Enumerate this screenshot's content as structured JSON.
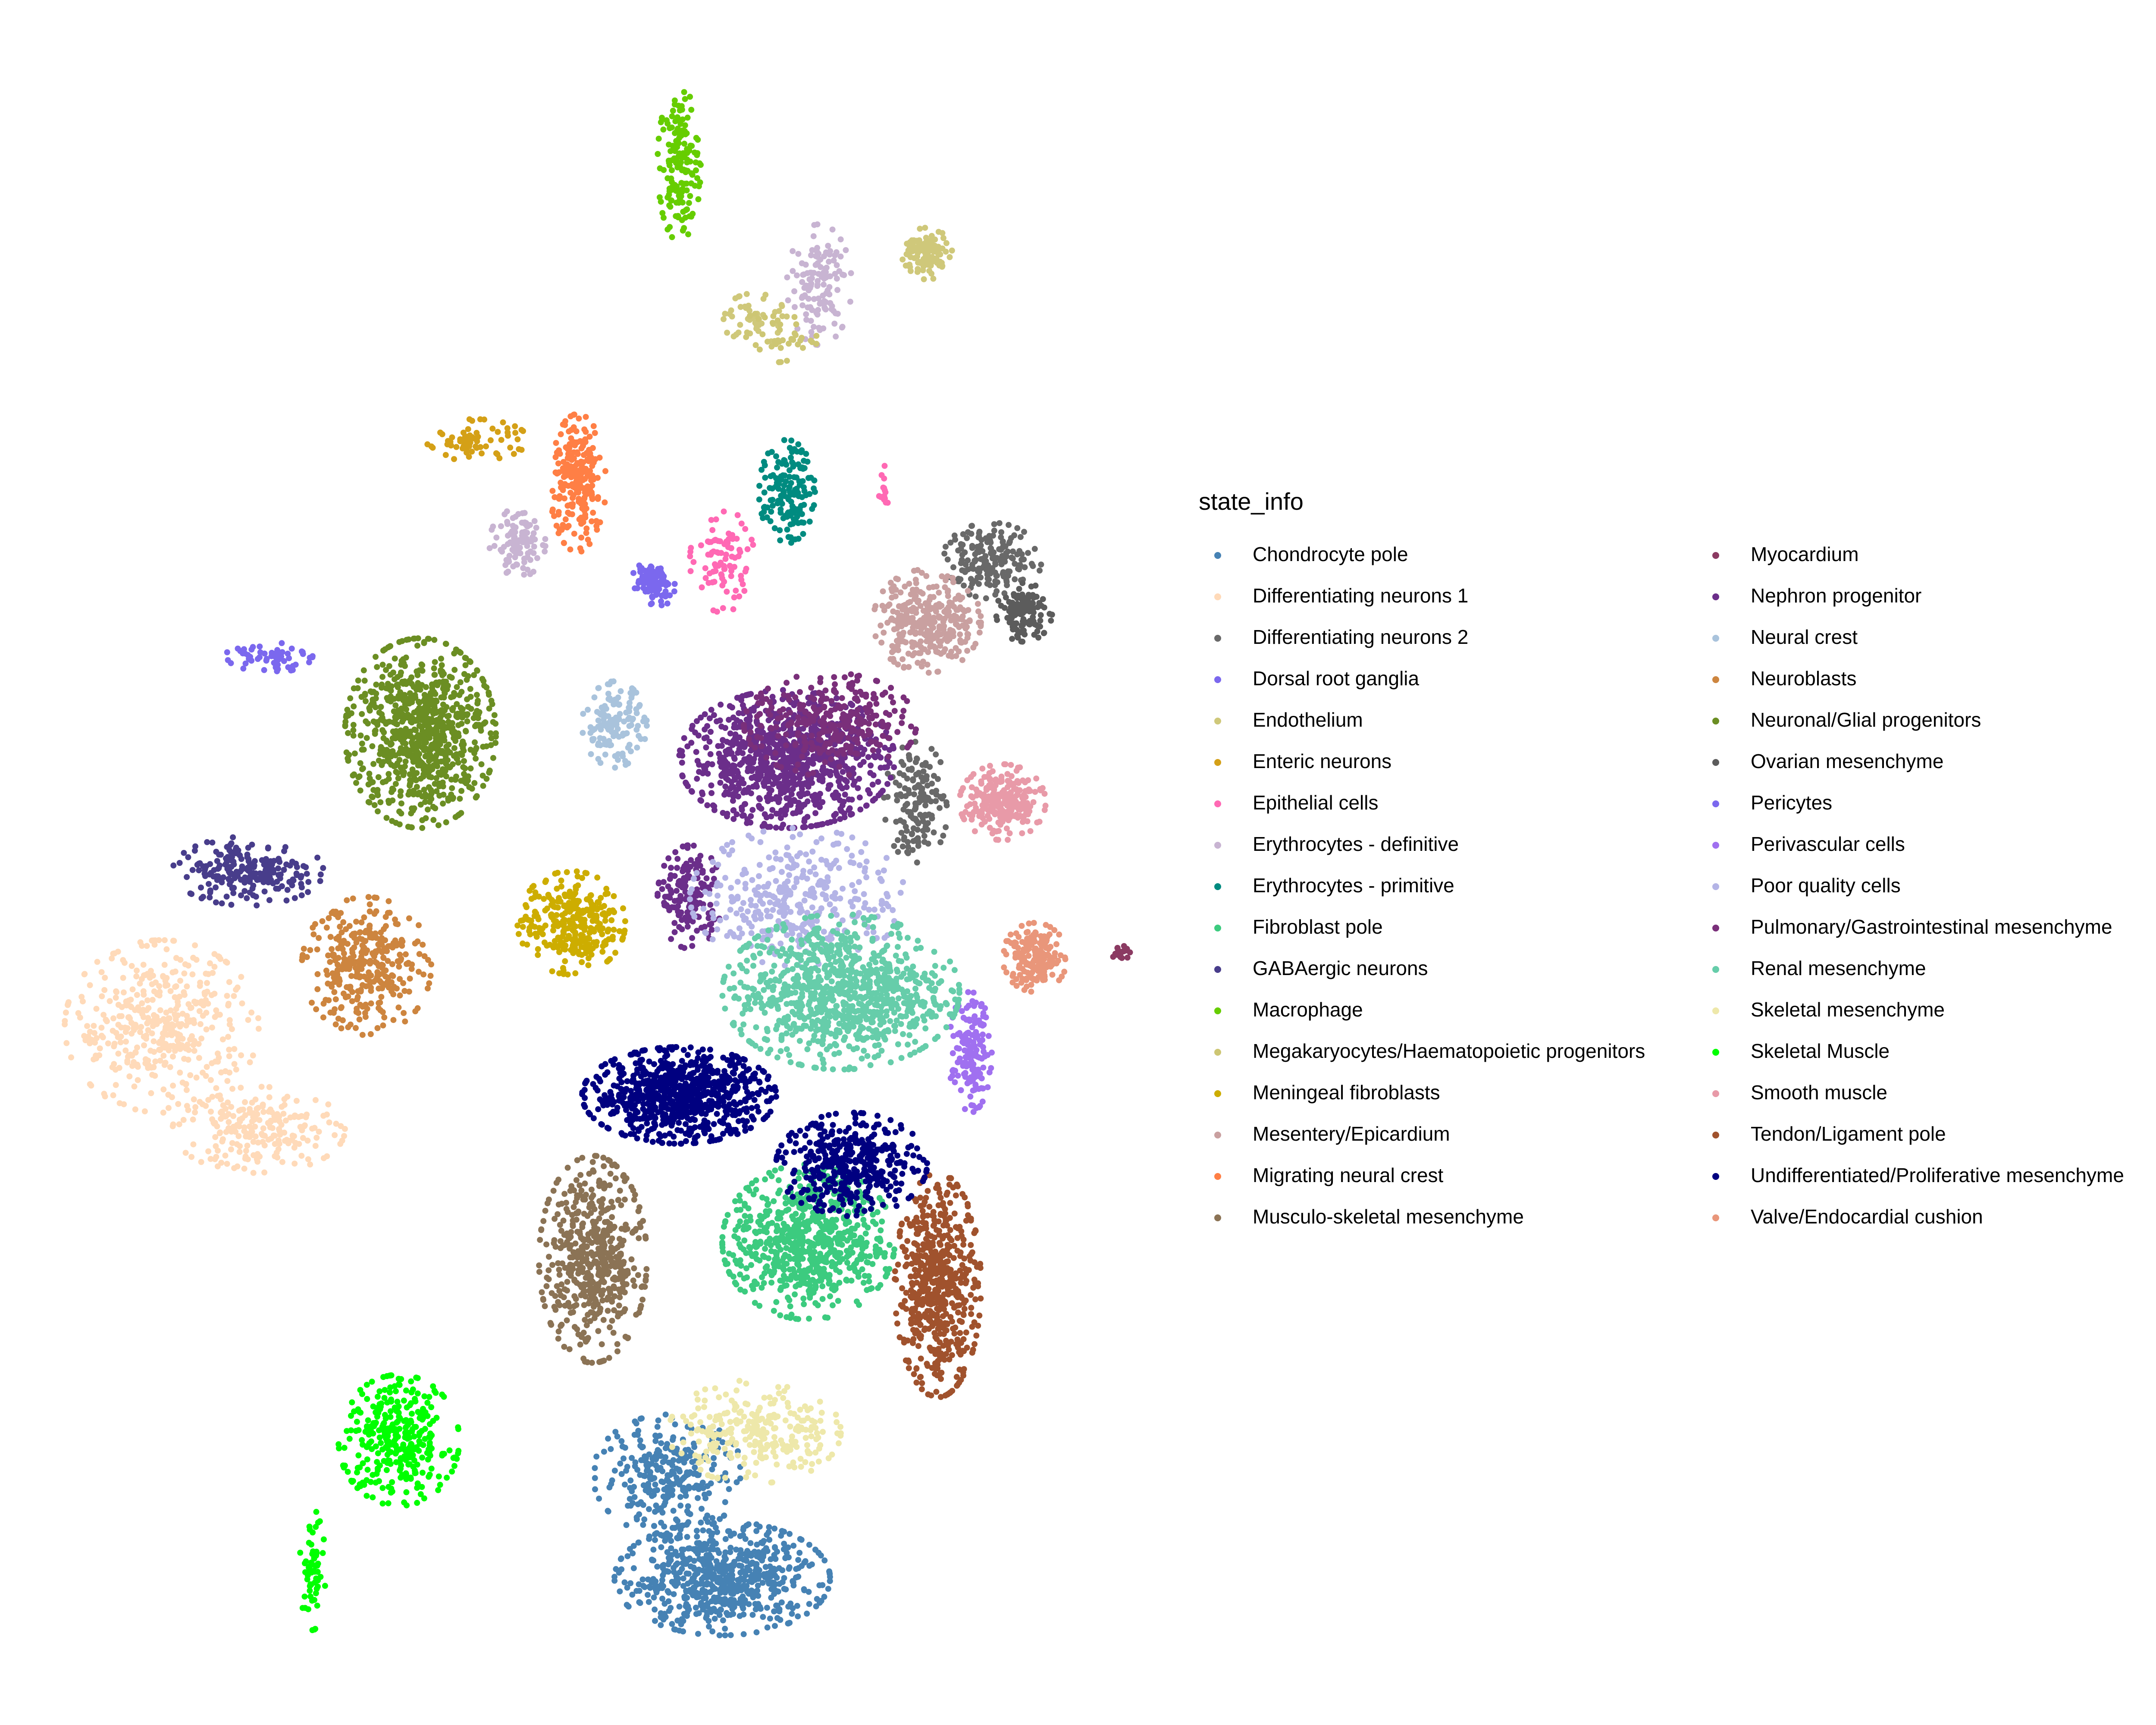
{
  "chart_data": {
    "type": "scatter",
    "title": "",
    "xlabel": "",
    "ylabel": "",
    "xlim": [
      0,
      100
    ],
    "ylim": [
      0,
      100
    ],
    "grid": false,
    "axes_visible": false,
    "legend": {
      "title": "state_info",
      "placement": "right",
      "columns": 2
    },
    "series": [
      {
        "name": "Chondrocyte pole",
        "color": "#4682B4",
        "clusters": [
          {
            "cx": 33.5,
            "cy": 8.5,
            "rx": 5.0,
            "ry": 3.3,
            "n": 650
          },
          {
            "cx": 31.0,
            "cy": 14.5,
            "rx": 3.5,
            "ry": 3.5,
            "n": 280
          }
        ]
      },
      {
        "name": "Differentiating neurons 1",
        "color": "#FFDAB9",
        "clusters": [
          {
            "cx": 7.5,
            "cy": 40.5,
            "rx": 4.5,
            "ry": 5.0,
            "n": 420
          },
          {
            "cx": 12.0,
            "cy": 34.5,
            "rx": 4.0,
            "ry": 2.5,
            "n": 220
          }
        ]
      },
      {
        "name": "Differentiating neurons 2",
        "color": "#696969",
        "clusters": [
          {
            "cx": 46.0,
            "cy": 67.5,
            "rx": 2.3,
            "ry": 2.2,
            "n": 180
          },
          {
            "cx": 42.5,
            "cy": 53.5,
            "rx": 1.5,
            "ry": 3.5,
            "n": 150
          }
        ]
      },
      {
        "name": "Dorsal root ganglia",
        "color": "#7B68EE",
        "clusters": [
          {
            "cx": 12.5,
            "cy": 62.0,
            "rx": 2.0,
            "ry": 1.0,
            "n": 60
          },
          {
            "cx": 30.0,
            "cy": 66.5,
            "rx": 0.7,
            "ry": 1.0,
            "n": 60
          }
        ]
      },
      {
        "name": "Endothelium",
        "color": "#CFC87A",
        "clusters": [
          {
            "cx": 43.0,
            "cy": 85.3,
            "rx": 1.2,
            "ry": 1.5,
            "n": 110
          },
          {
            "cx": 35.0,
            "cy": 81.5,
            "rx": 1.5,
            "ry": 1.5,
            "n": 50
          }
        ]
      },
      {
        "name": "Enteric neurons",
        "color": "#D4A017",
        "clusters": [
          {
            "cx": 22.0,
            "cy": 74.5,
            "rx": 2.5,
            "ry": 1.2,
            "n": 70
          }
        ]
      },
      {
        "name": "Epithelial cells",
        "color": "#FF69B4",
        "clusters": [
          {
            "cx": 33.5,
            "cy": 67.5,
            "rx": 1.5,
            "ry": 3.0,
            "n": 90
          },
          {
            "cx": 41.0,
            "cy": 71.5,
            "rx": 0.3,
            "ry": 1.5,
            "n": 15
          }
        ]
      },
      {
        "name": "Erythrocytes - definitive",
        "color": "#C8B4D2",
        "clusters": [
          {
            "cx": 38.0,
            "cy": 83.5,
            "rx": 1.5,
            "ry": 3.5,
            "n": 130
          },
          {
            "cx": 24.0,
            "cy": 68.5,
            "rx": 1.3,
            "ry": 2.0,
            "n": 110
          }
        ]
      },
      {
        "name": "Erythrocytes - primitive",
        "color": "#008B80",
        "clusters": [
          {
            "cx": 36.5,
            "cy": 71.5,
            "rx": 1.3,
            "ry": 3.0,
            "n": 150
          }
        ]
      },
      {
        "name": "Fibroblast pole",
        "color": "#3CCB7F",
        "clusters": [
          {
            "cx": 37.5,
            "cy": 28.0,
            "rx": 4.0,
            "ry": 4.5,
            "n": 700
          }
        ]
      },
      {
        "name": "GABAergic neurons",
        "color": "#483D8B",
        "clusters": [
          {
            "cx": 11.5,
            "cy": 49.5,
            "rx": 3.5,
            "ry": 2.0,
            "n": 220
          }
        ]
      },
      {
        "name": "Macrophage",
        "color": "#66CD00",
        "clusters": [
          {
            "cx": 31.5,
            "cy": 90.5,
            "rx": 1.0,
            "ry": 4.5,
            "n": 160
          }
        ]
      },
      {
        "name": "Megakaryocytes/Haematopoietic progenitors",
        "color": "#CDC673",
        "clusters": [
          {
            "cx": 36.0,
            "cy": 80.5,
            "rx": 2.0,
            "ry": 1.5,
            "n": 40
          }
        ]
      },
      {
        "name": "Meningeal fibroblasts",
        "color": "#CDAD00",
        "clusters": [
          {
            "cx": 26.5,
            "cy": 46.5,
            "rx": 2.5,
            "ry": 3.0,
            "n": 300
          }
        ]
      },
      {
        "name": "Mesentery/Epicardium",
        "color": "#C9A0A0",
        "clusters": [
          {
            "cx": 43.0,
            "cy": 64.0,
            "rx": 2.5,
            "ry": 3.0,
            "n": 320
          }
        ]
      },
      {
        "name": "Migrating neural crest",
        "color": "#FF7F45",
        "clusters": [
          {
            "cx": 26.8,
            "cy": 72.0,
            "rx": 1.3,
            "ry": 4.0,
            "n": 230
          }
        ]
      },
      {
        "name": "Musculo-skeletal mesenchyme",
        "color": "#8B7355",
        "clusters": [
          {
            "cx": 27.5,
            "cy": 27.0,
            "rx": 2.5,
            "ry": 6.0,
            "n": 520
          }
        ]
      },
      {
        "name": "Myocardium",
        "color": "#8B3A62",
        "clusters": [
          {
            "cx": 52.0,
            "cy": 44.8,
            "rx": 0.5,
            "ry": 0.4,
            "n": 20
          }
        ]
      },
      {
        "name": "Nephron progenitor",
        "color": "#6B2E8A",
        "clusters": [
          {
            "cx": 36.5,
            "cy": 56.0,
            "rx": 5.0,
            "ry": 4.0,
            "n": 950
          },
          {
            "cx": 32.0,
            "cy": 48.0,
            "rx": 1.5,
            "ry": 3.0,
            "n": 160
          }
        ]
      },
      {
        "name": "Neural crest",
        "color": "#A9C3DC",
        "clusters": [
          {
            "cx": 28.5,
            "cy": 58.0,
            "rx": 1.5,
            "ry": 2.5,
            "n": 140
          }
        ]
      },
      {
        "name": "Neuroblasts",
        "color": "#CD853F",
        "clusters": [
          {
            "cx": 17.0,
            "cy": 44.0,
            "rx": 3.0,
            "ry": 4.0,
            "n": 330
          }
        ]
      },
      {
        "name": "Neuronal/Glial progenitors",
        "color": "#6B8E23",
        "clusters": [
          {
            "cx": 19.5,
            "cy": 57.5,
            "rx": 3.5,
            "ry": 5.5,
            "n": 800
          }
        ]
      },
      {
        "name": "Ovarian mesenchyme",
        "color": "#5C5C5C",
        "clusters": [
          {
            "cx": 47.5,
            "cy": 64.5,
            "rx": 1.3,
            "ry": 1.7,
            "n": 120
          }
        ]
      },
      {
        "name": "Pericytes",
        "color": "#7B68EE",
        "clusters": [
          {
            "cx": 30.5,
            "cy": 66.0,
            "rx": 0.8,
            "ry": 1.2,
            "n": 50
          }
        ]
      },
      {
        "name": "Perivascular cells",
        "color": "#A070F0",
        "clusters": [
          {
            "cx": 45.0,
            "cy": 39.0,
            "rx": 1.0,
            "ry": 3.5,
            "n": 140
          }
        ]
      },
      {
        "name": "Poor quality cells",
        "color": "#B4B4E6",
        "clusters": [
          {
            "cx": 37.0,
            "cy": 48.0,
            "rx": 5.0,
            "ry": 4.0,
            "n": 350
          }
        ]
      },
      {
        "name": "Pulmonary/Gastrointestinal  mesenchyme",
        "color": "#7A2F7A",
        "clusters": [
          {
            "cx": 38.5,
            "cy": 58.0,
            "rx": 4.0,
            "ry": 3.0,
            "n": 300
          }
        ]
      },
      {
        "name": "Renal mesenchyme",
        "color": "#66CDAA",
        "clusters": [
          {
            "cx": 39.0,
            "cy": 42.5,
            "rx": 5.5,
            "ry": 4.5,
            "n": 900
          }
        ]
      },
      {
        "name": "Skeletal mesenchyme",
        "color": "#EEE8AA",
        "clusters": [
          {
            "cx": 35.0,
            "cy": 17.0,
            "rx": 4.0,
            "ry": 3.0,
            "n": 260
          }
        ]
      },
      {
        "name": "Skeletal Muscle",
        "color": "#00FF00",
        "clusters": [
          {
            "cx": 18.5,
            "cy": 16.5,
            "rx": 2.8,
            "ry": 3.8,
            "n": 330
          },
          {
            "cx": 14.5,
            "cy": 9.0,
            "rx": 0.6,
            "ry": 3.5,
            "n": 60
          }
        ]
      },
      {
        "name": "Smooth muscle",
        "color": "#E89AA8",
        "clusters": [
          {
            "cx": 46.5,
            "cy": 53.5,
            "rx": 2.0,
            "ry": 2.2,
            "n": 240
          }
        ]
      },
      {
        "name": "Tendon/Ligament pole",
        "color": "#A0522D",
        "clusters": [
          {
            "cx": 43.5,
            "cy": 25.5,
            "rx": 2.0,
            "ry": 6.5,
            "n": 560
          }
        ]
      },
      {
        "name": "Undifferentiated/Proliferative mesenchyme",
        "color": "#000080",
        "clusters": [
          {
            "cx": 31.5,
            "cy": 36.5,
            "rx": 4.5,
            "ry": 2.8,
            "n": 800
          },
          {
            "cx": 39.5,
            "cy": 32.5,
            "rx": 3.5,
            "ry": 3.0,
            "n": 400
          }
        ]
      },
      {
        "name": "Valve/Endocardial cushion",
        "color": "#E9967A",
        "clusters": [
          {
            "cx": 48.0,
            "cy": 44.5,
            "rx": 1.5,
            "ry": 2.0,
            "n": 170
          }
        ]
      }
    ]
  }
}
